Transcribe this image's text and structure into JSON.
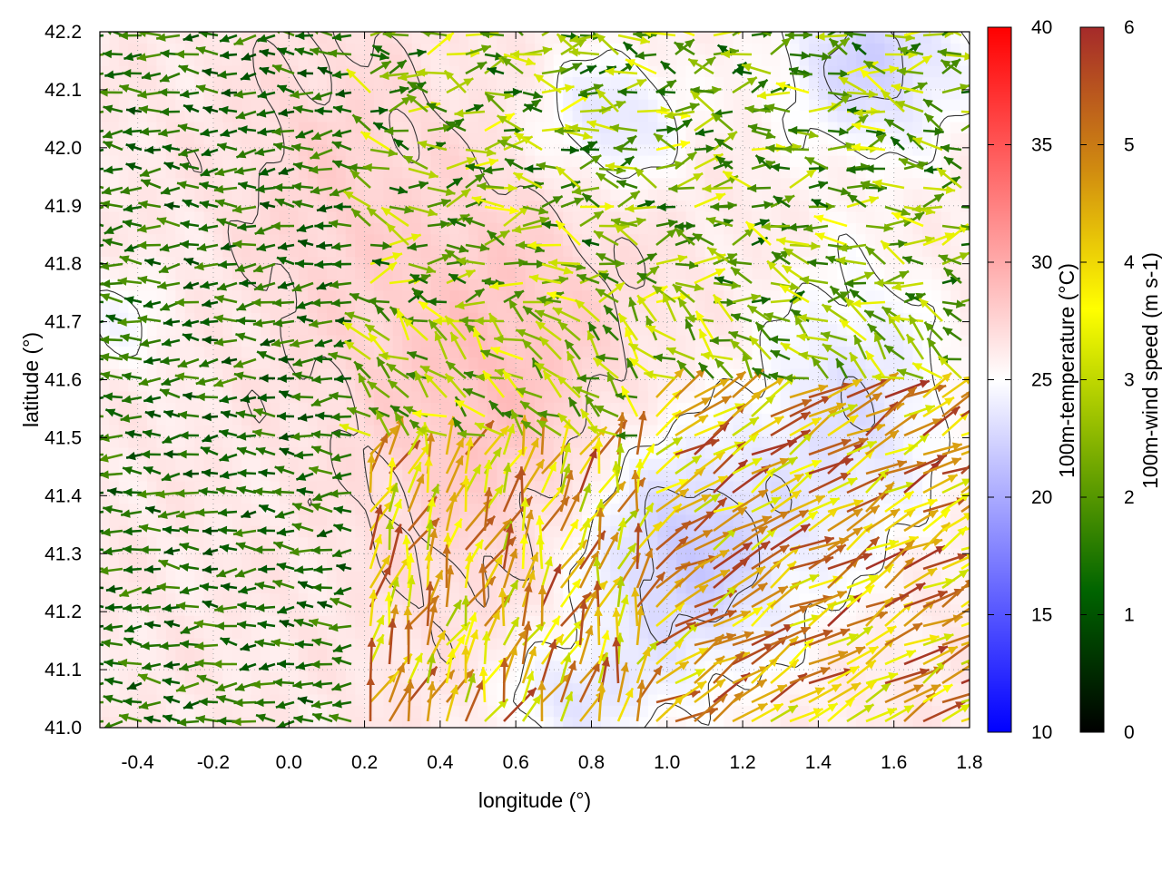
{
  "chart_data": {
    "type": "heatmap",
    "xlabel": "longitude (°)",
    "ylabel": "latitude (°)",
    "xlim": [
      -0.5,
      1.8
    ],
    "ylim": [
      41.0,
      42.2
    ],
    "xticks": [
      "-0.4",
      "-0.2",
      "0.0",
      "0.2",
      "0.4",
      "0.6",
      "0.8",
      "1.0",
      "1.2",
      "1.4",
      "1.6",
      "1.8"
    ],
    "yticks": [
      "41.0",
      "41.1",
      "41.2",
      "41.3",
      "41.4",
      "41.5",
      "41.6",
      "41.7",
      "41.8",
      "41.9",
      "42.0",
      "42.1",
      "42.2"
    ],
    "grid": true,
    "colorbars": [
      {
        "label": "100m-temperature (°C)",
        "range": [
          10,
          40
        ],
        "ticks": [
          "10",
          "15",
          "20",
          "25",
          "30",
          "35",
          "40"
        ],
        "colors": [
          "#0000ff",
          "#ffffff",
          "#ff0000"
        ]
      },
      {
        "label": "100m-wind speed (m s-1)",
        "range": [
          0,
          6
        ],
        "ticks": [
          "0",
          "1",
          "2",
          "3",
          "4",
          "5",
          "6"
        ],
        "colors": [
          "#000000",
          "#006400",
          "#7fb000",
          "#ffff00",
          "#d08a10",
          "#a52a2a"
        ]
      }
    ],
    "overlays": [
      "temperature contours",
      "wind vectors"
    ]
  }
}
